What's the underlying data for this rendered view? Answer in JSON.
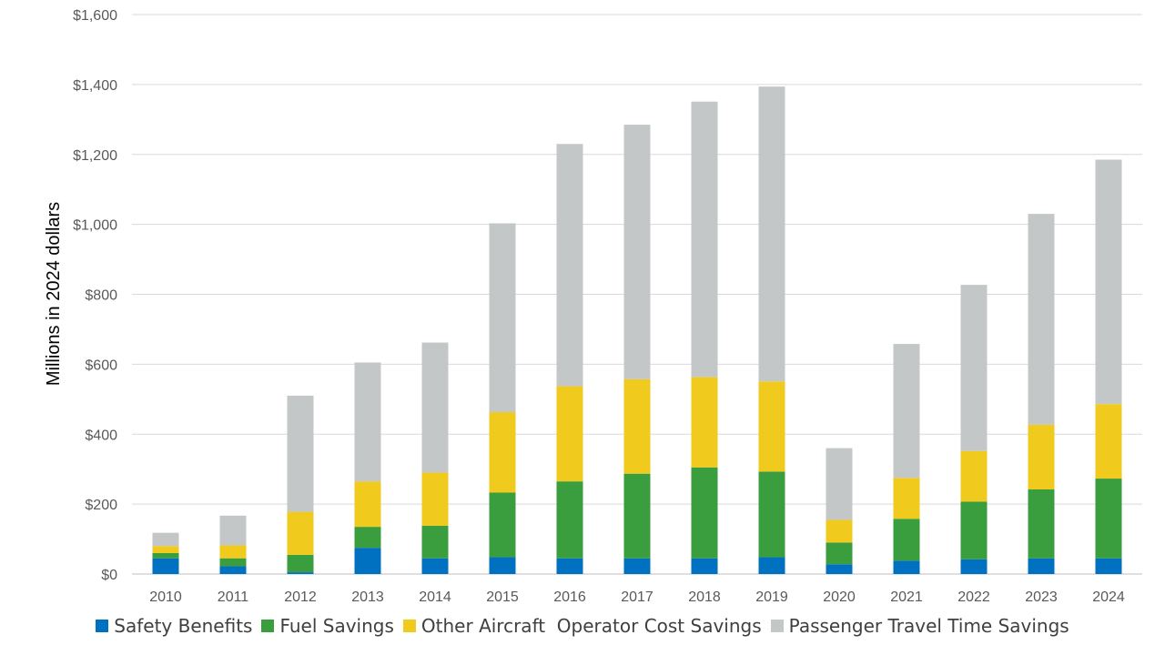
{
  "chart_data": {
    "type": "bar",
    "stacked": true,
    "ylabel": "Millions in 2024 dollars",
    "ylim": [
      0,
      1600
    ],
    "y_ticks": [
      "$0",
      "$200",
      "$400",
      "$600",
      "$800",
      "$1,000",
      "$1,200",
      "$1,400",
      "$1,600"
    ],
    "y_tick_values": [
      0,
      200,
      400,
      600,
      800,
      1000,
      1200,
      1400,
      1600
    ],
    "categories": [
      "2010",
      "2011",
      "2012",
      "2013",
      "2014",
      "2015",
      "2016",
      "2017",
      "2018",
      "2019",
      "2020",
      "2021",
      "2022",
      "2023",
      "2024"
    ],
    "series": [
      {
        "name": "Safety Benefits",
        "color": "#0070c0",
        "values": [
          45,
          22,
          5,
          75,
          45,
          48,
          45,
          45,
          45,
          48,
          28,
          38,
          42,
          45,
          45
        ]
      },
      {
        "name": "Fuel Savings",
        "color": "#3a9e3e",
        "values": [
          15,
          23,
          50,
          60,
          93,
          185,
          220,
          242,
          260,
          245,
          62,
          120,
          165,
          197,
          228
        ]
      },
      {
        "name": "Other Aircraft  Operator Cost Savings",
        "color": "#f0ca1c",
        "values": [
          20,
          37,
          123,
          130,
          152,
          230,
          272,
          270,
          258,
          258,
          65,
          117,
          145,
          185,
          213
        ]
      },
      {
        "name": "Passenger Travel Time Savings",
        "color": "#c4c7c8",
        "values": [
          38,
          85,
          332,
          340,
          372,
          540,
          693,
          728,
          788,
          843,
          205,
          383,
          475,
          603,
          699
        ]
      }
    ]
  }
}
